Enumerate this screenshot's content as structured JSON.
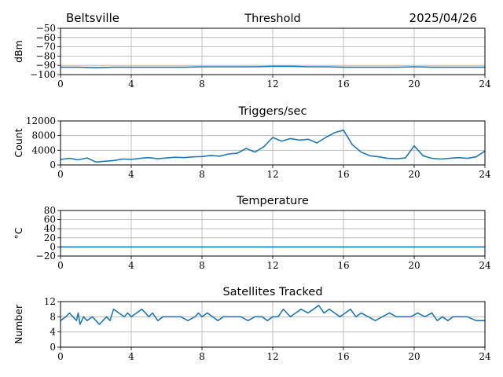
{
  "header": {
    "station": "Beltsville",
    "date": "2025/04/26"
  },
  "colors": {
    "line": "#1f77b4",
    "grid": "#b0b0b0",
    "axis": "#000000"
  },
  "chart_data": [
    {
      "type": "line",
      "title": "Threshold",
      "ylabel": "dBm",
      "xlim": [
        0,
        24
      ],
      "ylim": [
        -100,
        -50
      ],
      "xticks": [
        "0",
        "4",
        "8",
        "12",
        "16",
        "20",
        "24"
      ],
      "yticks": [
        "−50",
        "−60",
        "−70",
        "−80",
        "−90",
        "−100"
      ],
      "ytick_values": [
        -50,
        -60,
        -70,
        -80,
        -90,
        -100
      ],
      "grid": true,
      "x": [
        0,
        1,
        2,
        3,
        4,
        5,
        6,
        7,
        8,
        9,
        10,
        11,
        12,
        13,
        14,
        15,
        16,
        17,
        18,
        19,
        20,
        21,
        22,
        23,
        24
      ],
      "series": [
        {
          "values": [
            -92,
            -92,
            -92.5,
            -92,
            -92,
            -92,
            -92,
            -92,
            -91.5,
            -91.5,
            -91.5,
            -91.5,
            -91,
            -91,
            -91.5,
            -91.5,
            -92,
            -92,
            -92,
            -92,
            -91.5,
            -92,
            -92,
            -92,
            -92
          ]
        }
      ]
    },
    {
      "type": "line",
      "title": "Triggers/sec",
      "ylabel": "Count",
      "xlim": [
        0,
        24
      ],
      "ylim": [
        0,
        12000
      ],
      "xticks": [
        "0",
        "4",
        "8",
        "12",
        "16",
        "20",
        "24"
      ],
      "yticks": [
        "12000",
        "8000",
        "4000",
        "0"
      ],
      "ytick_values": [
        12000,
        8000,
        4000,
        0
      ],
      "grid": true,
      "x": [
        0,
        0.5,
        1,
        1.5,
        2,
        2.5,
        3,
        3.5,
        4,
        4.5,
        5,
        5.5,
        6,
        6.5,
        7,
        7.5,
        8,
        8.5,
        9,
        9.5,
        10,
        10.5,
        11,
        11.5,
        12,
        12.5,
        13,
        13.5,
        14,
        14.5,
        15,
        15.5,
        16,
        16.5,
        17,
        17.5,
        18,
        18.5,
        19,
        19.5,
        20,
        20.5,
        21,
        21.5,
        22,
        22.5,
        23,
        23.5,
        24
      ],
      "series": [
        {
          "values": [
            1500,
            1800,
            1400,
            1900,
            800,
            1000,
            1200,
            1600,
            1500,
            1800,
            2000,
            1700,
            1900,
            2100,
            2000,
            2200,
            2300,
            2600,
            2400,
            3000,
            3200,
            4500,
            3500,
            5000,
            7500,
            6500,
            7200,
            6800,
            7000,
            6000,
            7500,
            8800,
            9500,
            5500,
            3500,
            2500,
            2200,
            1800,
            1700,
            1900,
            5200,
            2500,
            1800,
            1600,
            1800,
            2000,
            1800,
            2200,
            3800
          ]
        }
      ]
    },
    {
      "type": "line",
      "title": "Temperature",
      "ylabel": "°C",
      "xlim": [
        0,
        24
      ],
      "ylim": [
        -20,
        80
      ],
      "xticks": [
        "0",
        "4",
        "8",
        "12",
        "16",
        "20",
        "24"
      ],
      "yticks": [
        "80",
        "60",
        "40",
        "20",
        "0",
        "−20"
      ],
      "ytick_values": [
        80,
        60,
        40,
        20,
        0,
        -20
      ],
      "grid": true,
      "x": [
        0,
        24
      ],
      "series": [
        {
          "values": [
            0,
            0
          ]
        }
      ]
    },
    {
      "type": "line",
      "title": "Satellites Tracked",
      "ylabel": "Number",
      "xlim": [
        0,
        24
      ],
      "ylim": [
        0,
        12
      ],
      "xticks": [
        "0",
        "4",
        "8",
        "12",
        "16",
        "20",
        "24"
      ],
      "yticks": [
        "12",
        "8",
        "4",
        "0"
      ],
      "ytick_values": [
        12,
        8,
        4,
        0
      ],
      "grid": true,
      "x": [
        0,
        0.3,
        0.5,
        0.7,
        0.9,
        1.0,
        1.1,
        1.3,
        1.5,
        1.8,
        2.0,
        2.2,
        2.4,
        2.6,
        2.8,
        3.0,
        3.3,
        3.6,
        3.8,
        4.0,
        4.3,
        4.6,
        5.0,
        5.2,
        5.5,
        5.8,
        6.0,
        6.4,
        6.8,
        7.2,
        7.6,
        7.8,
        8.0,
        8.3,
        8.6,
        8.9,
        9.2,
        9.5,
        9.8,
        10.2,
        10.6,
        11.0,
        11.4,
        11.7,
        12.0,
        12.3,
        12.6,
        12.8,
        13.0,
        13.3,
        13.6,
        14.0,
        14.3,
        14.6,
        14.9,
        15.2,
        15.5,
        15.8,
        16.1,
        16.4,
        16.7,
        17.0,
        17.4,
        17.8,
        18.2,
        18.6,
        19.0,
        19.4,
        19.8,
        20.2,
        20.6,
        21.0,
        21.3,
        21.6,
        21.9,
        22.2,
        22.5,
        23.0,
        23.5,
        24
      ],
      "series": [
        {
          "values": [
            7,
            8,
            9,
            8,
            7,
            9,
            6,
            8,
            7,
            8,
            7,
            6,
            7,
            8,
            7,
            10,
            9,
            8,
            9,
            8,
            9,
            10,
            8,
            9,
            7,
            8,
            8,
            8,
            8,
            7,
            8,
            9,
            8,
            9,
            8,
            7,
            8,
            8,
            8,
            8,
            7,
            8,
            8,
            7,
            8,
            8,
            10,
            9,
            8,
            9,
            10,
            9,
            10,
            11,
            9,
            10,
            9,
            8,
            9,
            10,
            8,
            9,
            8,
            7,
            8,
            9,
            8,
            8,
            8,
            9,
            8,
            9,
            7,
            8,
            7,
            8,
            8,
            8,
            7,
            7
          ]
        }
      ]
    }
  ]
}
